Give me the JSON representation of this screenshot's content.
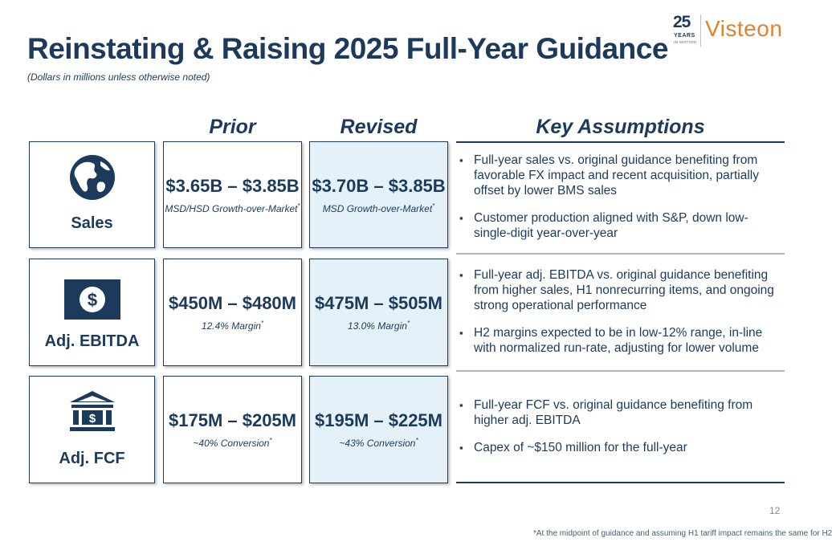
{
  "logo": {
    "anniversary_number": "25",
    "years": "YEARS",
    "in_motion": "IN MOTION",
    "brand": "Visteon"
  },
  "title": "Reinstating & Raising 2025 Full-Year Guidance",
  "subtitle": "(Dollars in millions unless otherwise noted)",
  "columns": {
    "prior": "Prior",
    "revised": "Revised",
    "assumptions": "Key Assumptions"
  },
  "rows": [
    {
      "label": "Sales",
      "icon": "globe-icon",
      "prior_value": "$3.65B – $3.85B",
      "prior_note": "MSD/HSD Growth-over-Market",
      "revised_value": "$3.70B – $3.85B",
      "revised_note": "MSD Growth-over-Market",
      "assumptions": [
        "Full-year sales vs. original guidance benefiting from favorable FX impact and recent acquisition, partially offset by lower BMS sales",
        "Customer production aligned with S&P, down low-single-digit year-over-year"
      ]
    },
    {
      "label": "Adj. EBITDA",
      "icon": "dollar-bill-icon",
      "prior_value": "$450M – $480M",
      "prior_note": "12.4% Margin",
      "revised_value": "$475M – $505M",
      "revised_note": "13.0% Margin",
      "assumptions": [
        "Full-year adj. EBITDA vs. original guidance benefiting from higher sales, H1 nonrecurring items, and ongoing strong operational performance",
        "H2 margins expected to be in low-12% range, in-line with normalized run-rate, adjusting for lower volume"
      ]
    },
    {
      "label": "Adj. FCF",
      "icon": "bank-icon",
      "prior_value": "$175M – $205M",
      "prior_note": "~40% Conversion",
      "revised_value": "$195M – $225M",
      "revised_note": "~43% Conversion",
      "assumptions": [
        "Full-year FCF vs. original guidance benefiting from higher adj. EBITDA",
        "Capex of ~$150 million for the full-year"
      ]
    }
  ],
  "footnote_marker": "*",
  "page_number": "12",
  "footnote": "*At the midpoint of guidance and assuming H1 tariff impact remains the same for H2",
  "colors": {
    "navy": "#1b3a5c",
    "orange": "#e0832f",
    "revised_fill": "#e5f1f8"
  }
}
